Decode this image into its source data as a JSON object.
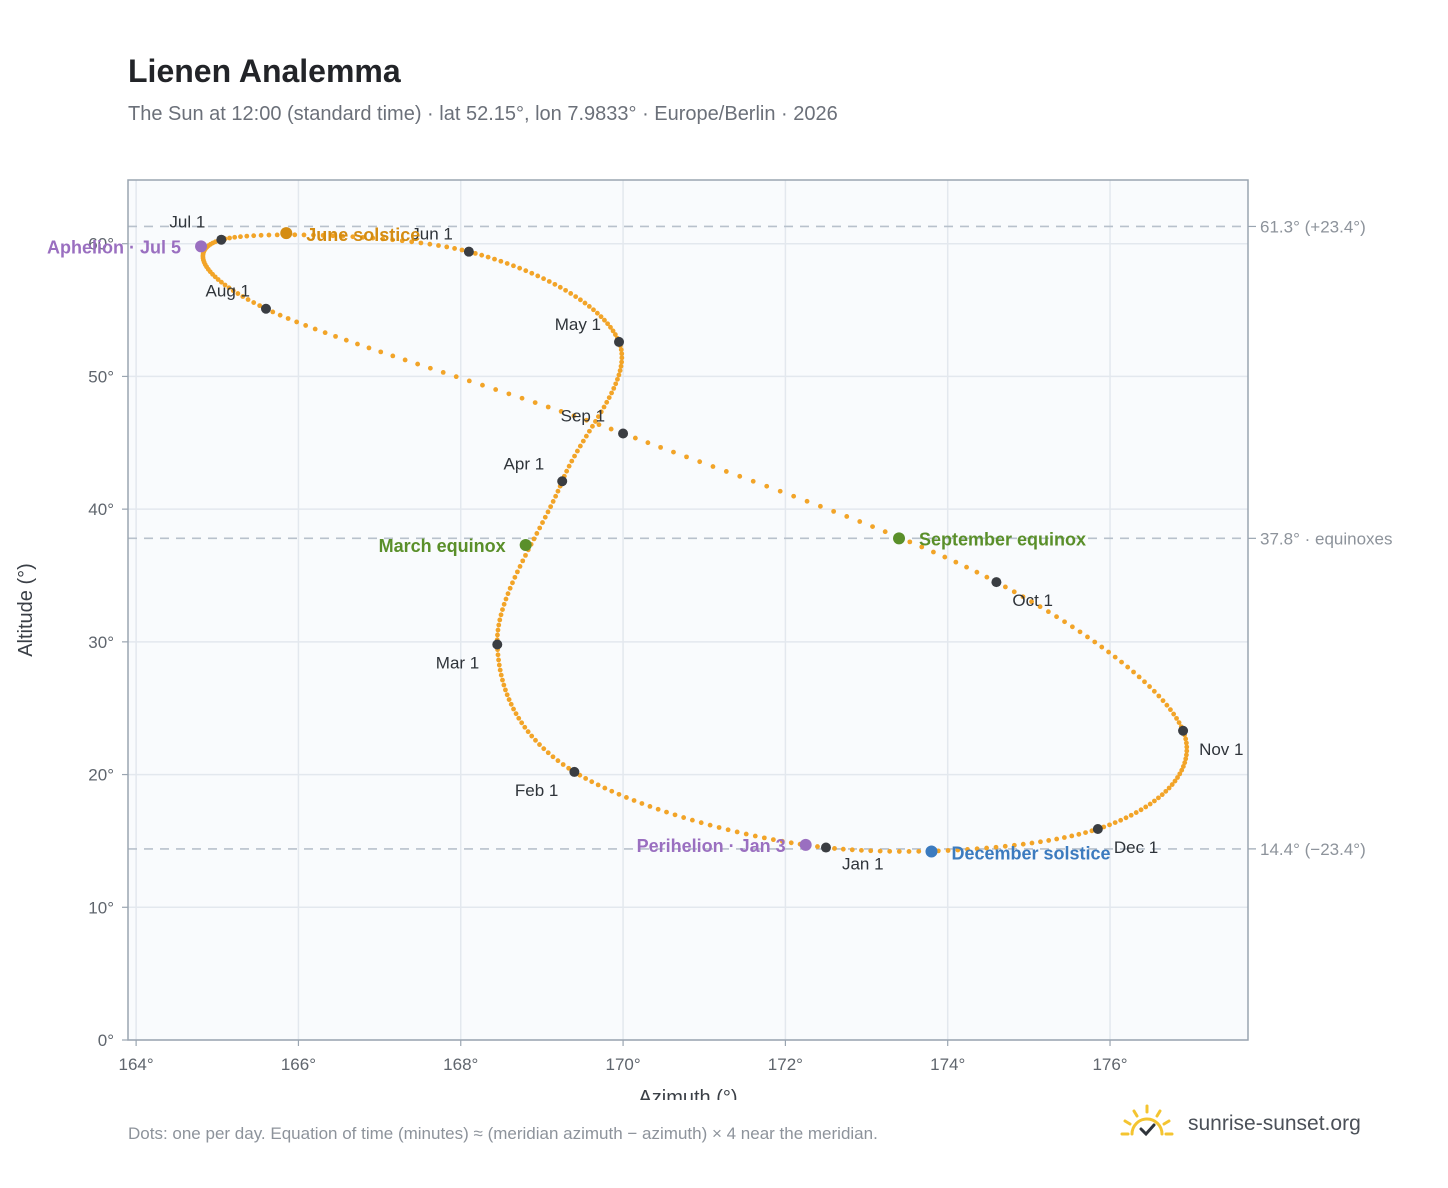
{
  "header": {
    "title": "Lienen Analemma",
    "subtitle": "The Sun at 12:00 (standard time) · lat 52.15°, lon 7.9833° · Europe/Berlin · 2026"
  },
  "footer": {
    "note": "Dots: one per day. Equation of time (minutes) ≈ (meridian azimuth − azimuth) × 4 near the meridian.",
    "brand": "sunrise-sunset.org"
  },
  "colors": {
    "path": "#f2a428",
    "month_marker": "#3a3d42",
    "june_solstice": "#d48c12",
    "december_solstice": "#3c7bbf",
    "equinox": "#5a8f2a",
    "apsis": "#9a6fc0",
    "reference_line": "#b8c1cc",
    "plot_background": "#f9fbfd",
    "grid": "#e3e8ee",
    "frame": "#9aa5b1"
  },
  "chart_data": {
    "type": "scatter",
    "xlabel": "Azimuth (°)",
    "ylabel": "Altitude (°)",
    "xlim": [
      163.9,
      177.7
    ],
    "ylim": [
      0,
      64.8
    ],
    "xticks": [
      164,
      166,
      168,
      170,
      172,
      174,
      176
    ],
    "xtick_labels": [
      "164°",
      "166°",
      "168°",
      "170°",
      "172°",
      "174°",
      "176°"
    ],
    "yticks": [
      0,
      10,
      20,
      30,
      40,
      50,
      60
    ],
    "ytick_labels": [
      "0°",
      "10°",
      "20°",
      "30°",
      "40°",
      "50°",
      "60°"
    ],
    "grid": true,
    "daily_path_note": "one dot per day, smooth closed loop through the month anchors",
    "month_markers": [
      {
        "label": "Jan 1",
        "azimuth": 172.5,
        "altitude": 14.5
      },
      {
        "label": "Feb 1",
        "azimuth": 169.4,
        "altitude": 20.2
      },
      {
        "label": "Mar 1",
        "azimuth": 168.45,
        "altitude": 29.8
      },
      {
        "label": "Apr 1",
        "azimuth": 169.25,
        "altitude": 42.1
      },
      {
        "label": "May 1",
        "azimuth": 169.95,
        "altitude": 52.6
      },
      {
        "label": "Jun 1",
        "azimuth": 168.1,
        "altitude": 59.4
      },
      {
        "label": "Jul 1",
        "azimuth": 165.05,
        "altitude": 60.3
      },
      {
        "label": "Aug 1",
        "azimuth": 165.6,
        "altitude": 55.1
      },
      {
        "label": "Sep 1",
        "azimuth": 170.0,
        "altitude": 45.7
      },
      {
        "label": "Oct 1",
        "azimuth": 174.6,
        "altitude": 34.5
      },
      {
        "label": "Nov 1",
        "azimuth": 176.9,
        "altitude": 23.3
      },
      {
        "label": "Dec 1",
        "azimuth": 175.85,
        "altitude": 15.9
      }
    ],
    "events": [
      {
        "label": "Perihelion · Jan 3",
        "azimuth": 172.25,
        "altitude": 14.7,
        "kind": "apsis"
      },
      {
        "label": "March equinox",
        "azimuth": 168.8,
        "altitude": 37.3,
        "kind": "equinox"
      },
      {
        "label": "June solstice",
        "azimuth": 165.85,
        "altitude": 60.8,
        "kind": "june_solstice"
      },
      {
        "label": "Aphelion · Jul 5",
        "azimuth": 164.8,
        "altitude": 59.8,
        "kind": "apsis"
      },
      {
        "label": "September equinox",
        "azimuth": 173.4,
        "altitude": 37.8,
        "kind": "equinox"
      },
      {
        "label": "December solstice",
        "azimuth": 173.8,
        "altitude": 14.2,
        "kind": "december_solstice"
      }
    ],
    "reference_lines": [
      {
        "altitude": 61.3,
        "label": "61.3° (+23.4°)"
      },
      {
        "altitude": 37.8,
        "label": "37.8° · equinoxes"
      },
      {
        "altitude": 14.4,
        "label": "14.4° (−23.4°)"
      }
    ]
  }
}
